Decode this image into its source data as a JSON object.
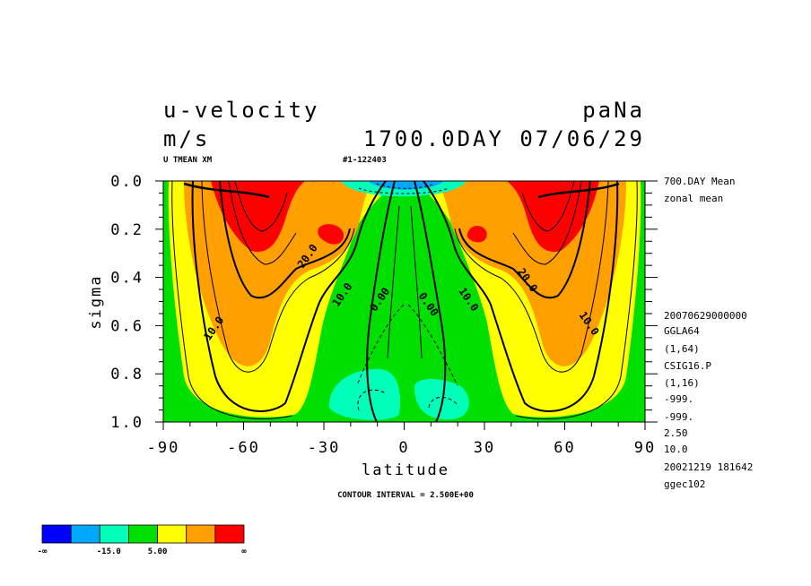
{
  "header": {
    "title": "u-velocity",
    "units": "m/s",
    "experiment": "paNa",
    "time": "1700.0DAY 07/06/29",
    "var_label": "U TMEAN XM",
    "run_id": "#1-122403"
  },
  "side_info": [
    "700.DAY Mean",
    "zonal mean",
    "20070629000000",
    "GGLA64",
    "(1,64)",
    "CSIG16.P",
    "(1,16)",
    "-999.",
    "-999.",
    "2.50",
    "10.0",
    "20021219 181642",
    "ggec102"
  ],
  "contour_interval": "CONTOUR INTERVAL = 2.500E+00",
  "colorbar": {
    "colors": [
      "#0000ff",
      "#00a8ff",
      "#00ffb8",
      "#00e000",
      "#ffff00",
      "#ffa000",
      "#ff0000"
    ],
    "labels": [
      "-∞",
      "-15.0",
      "5.00",
      "∞"
    ]
  },
  "chart_data": {
    "type": "heatmap",
    "subtype": "filled-contour",
    "xlabel": "latitude",
    "ylabel": "sigma",
    "xlim": [
      -90,
      90
    ],
    "ylim": [
      1.0,
      0.0
    ],
    "x_ticks": [
      "-90",
      "-60",
      "-30",
      "0",
      "30",
      "60",
      "90"
    ],
    "y_ticks": [
      "0.0",
      "0.2",
      "0.4",
      "0.6",
      "0.8",
      "1.0"
    ],
    "contour_labels": [
      {
        "text": "20.0",
        "lat": -35,
        "sigma": 0.32
      },
      {
        "text": "10.0",
        "lat": -22,
        "sigma": 0.48
      },
      {
        "text": "0.00",
        "lat": -8,
        "sigma": 0.5
      },
      {
        "text": "10.0",
        "lat": -70,
        "sigma": 0.62
      },
      {
        "text": "0.00",
        "lat": 8,
        "sigma": 0.52
      },
      {
        "text": "10.0",
        "lat": 23,
        "sigma": 0.5
      },
      {
        "text": "20.0",
        "lat": 45,
        "sigma": 0.42
      },
      {
        "text": "10.0",
        "lat": 68,
        "sigma": 0.6
      }
    ],
    "jets": [
      {
        "name": "southern jet",
        "lat": -52,
        "sigma": 0.05,
        "u_max_approx": 35
      },
      {
        "name": "northern jet",
        "lat": 50,
        "sigma": 0.05,
        "u_max_approx": 35
      },
      {
        "name": "southern secondary max",
        "lat": -28,
        "sigma": 0.22,
        "u_approx": 27
      },
      {
        "name": "northern secondary max",
        "lat": 27,
        "sigma": 0.22,
        "u_approx": 27
      }
    ],
    "easterly_regions": [
      {
        "lat": -10,
        "sigma": 0.93,
        "u_approx": -8
      },
      {
        "lat": 12,
        "sigma": 0.93,
        "u_approx": -8
      },
      {
        "lat": 0,
        "sigma": 0.02,
        "u_approx": -12
      }
    ]
  }
}
